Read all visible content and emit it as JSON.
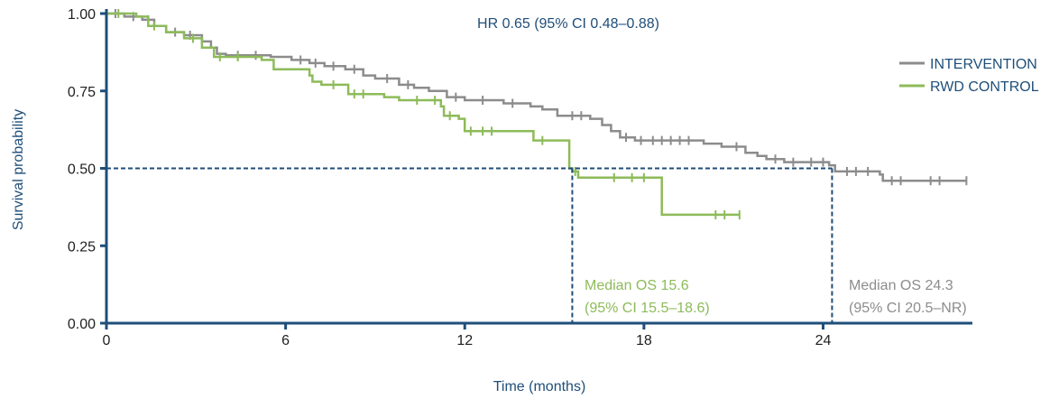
{
  "chart_data": {
    "type": "line",
    "subtype": "kaplan-meier",
    "hr_text": "HR 0.65 (95% CI 0.48–0.88)",
    "xlabel": "Time (months)",
    "ylabel": "Survival probability",
    "xlim": [
      0,
      29
    ],
    "ylim": [
      0,
      1
    ],
    "x_ticks": [
      0,
      6,
      12,
      18,
      24
    ],
    "y_ticks": [
      0.0,
      0.25,
      0.5,
      0.75,
      1.0
    ],
    "y_tick_labels": [
      "0.00",
      "0.25",
      "0.50",
      "0.75",
      "1.00"
    ],
    "legend_position": "top-right",
    "reference_y": 0.5,
    "series": [
      {
        "name": "INTERVENTION",
        "color": "#8c8c8c",
        "steps": [
          [
            0,
            1.0
          ],
          [
            0.6,
            0.99
          ],
          [
            1.2,
            0.98
          ],
          [
            1.6,
            0.96
          ],
          [
            2.0,
            0.94
          ],
          [
            2.6,
            0.93
          ],
          [
            3.2,
            0.91
          ],
          [
            3.5,
            0.89
          ],
          [
            3.7,
            0.87
          ],
          [
            4.0,
            0.865
          ],
          [
            5.5,
            0.86
          ],
          [
            6.2,
            0.85
          ],
          [
            6.8,
            0.84
          ],
          [
            7.3,
            0.83
          ],
          [
            8.0,
            0.82
          ],
          [
            8.6,
            0.8
          ],
          [
            9.0,
            0.79
          ],
          [
            9.8,
            0.77
          ],
          [
            10.3,
            0.76
          ],
          [
            10.8,
            0.75
          ],
          [
            11.4,
            0.73
          ],
          [
            12.0,
            0.72
          ],
          [
            13.3,
            0.71
          ],
          [
            14.2,
            0.7
          ],
          [
            14.6,
            0.69
          ],
          [
            15.1,
            0.67
          ],
          [
            16.2,
            0.66
          ],
          [
            16.6,
            0.64
          ],
          [
            16.9,
            0.62
          ],
          [
            17.2,
            0.6
          ],
          [
            17.7,
            0.59
          ],
          [
            20.0,
            0.58
          ],
          [
            20.6,
            0.57
          ],
          [
            21.4,
            0.55
          ],
          [
            21.8,
            0.54
          ],
          [
            22.1,
            0.53
          ],
          [
            22.7,
            0.52
          ],
          [
            24.2,
            0.51
          ],
          [
            24.4,
            0.49
          ],
          [
            25.9,
            0.48
          ],
          [
            26.0,
            0.46
          ],
          [
            28.8,
            0.46
          ]
        ],
        "censored": [
          [
            0.3,
            1.0
          ],
          [
            0.9,
            0.99
          ],
          [
            1.4,
            0.98
          ],
          [
            2.3,
            0.94
          ],
          [
            2.8,
            0.93
          ],
          [
            4.4,
            0.865
          ],
          [
            5.0,
            0.865
          ],
          [
            6.5,
            0.85
          ],
          [
            7.0,
            0.84
          ],
          [
            7.6,
            0.83
          ],
          [
            8.3,
            0.82
          ],
          [
            9.4,
            0.79
          ],
          [
            10.1,
            0.77
          ],
          [
            11.7,
            0.73
          ],
          [
            12.6,
            0.72
          ],
          [
            13.6,
            0.71
          ],
          [
            15.6,
            0.67
          ],
          [
            15.9,
            0.67
          ],
          [
            17.4,
            0.6
          ],
          [
            17.9,
            0.59
          ],
          [
            18.3,
            0.59
          ],
          [
            18.6,
            0.59
          ],
          [
            18.9,
            0.59
          ],
          [
            19.2,
            0.59
          ],
          [
            19.5,
            0.59
          ],
          [
            21.1,
            0.57
          ],
          [
            22.4,
            0.53
          ],
          [
            23.0,
            0.52
          ],
          [
            23.6,
            0.52
          ],
          [
            24.0,
            0.52
          ],
          [
            24.8,
            0.49
          ],
          [
            25.1,
            0.49
          ],
          [
            25.5,
            0.49
          ],
          [
            26.3,
            0.46
          ],
          [
            26.6,
            0.46
          ],
          [
            27.6,
            0.46
          ],
          [
            27.9,
            0.46
          ],
          [
            28.8,
            0.46
          ]
        ]
      },
      {
        "name": "RWD CONTROL",
        "color": "#8dbb59",
        "steps": [
          [
            0,
            1.0
          ],
          [
            1.0,
            0.99
          ],
          [
            1.4,
            0.96
          ],
          [
            2.0,
            0.94
          ],
          [
            2.6,
            0.92
          ],
          [
            3.2,
            0.89
          ],
          [
            3.6,
            0.86
          ],
          [
            5.2,
            0.85
          ],
          [
            5.6,
            0.82
          ],
          [
            6.8,
            0.8
          ],
          [
            6.9,
            0.78
          ],
          [
            7.2,
            0.77
          ],
          [
            8.1,
            0.74
          ],
          [
            9.3,
            0.73
          ],
          [
            9.8,
            0.72
          ],
          [
            11.2,
            0.7
          ],
          [
            11.3,
            0.67
          ],
          [
            11.8,
            0.66
          ],
          [
            12.0,
            0.62
          ],
          [
            14.3,
            0.59
          ],
          [
            15.5,
            0.5
          ],
          [
            15.6,
            0.49
          ],
          [
            15.8,
            0.47
          ],
          [
            18.6,
            0.35
          ],
          [
            21.2,
            0.35
          ]
        ],
        "censored": [
          [
            0.4,
            1.0
          ],
          [
            1.6,
            0.96
          ],
          [
            2.9,
            0.92
          ],
          [
            3.8,
            0.86
          ],
          [
            4.4,
            0.86
          ],
          [
            7.6,
            0.77
          ],
          [
            8.3,
            0.74
          ],
          [
            8.6,
            0.74
          ],
          [
            10.4,
            0.72
          ],
          [
            11.0,
            0.72
          ],
          [
            11.5,
            0.67
          ],
          [
            12.2,
            0.62
          ],
          [
            12.6,
            0.62
          ],
          [
            12.9,
            0.62
          ],
          [
            14.6,
            0.59
          ],
          [
            15.7,
            0.49
          ],
          [
            17.0,
            0.47
          ],
          [
            17.6,
            0.47
          ],
          [
            18.0,
            0.47
          ],
          [
            20.4,
            0.35
          ],
          [
            20.7,
            0.35
          ],
          [
            21.2,
            0.35
          ]
        ]
      }
    ],
    "medians": [
      {
        "series": "RWD CONTROL",
        "value": 15.6,
        "line1": "Median OS 15.6",
        "line2": "(95% CI 15.5–18.6)",
        "color": "#8dbb59"
      },
      {
        "series": "INTERVENTION",
        "value": 24.3,
        "line1": "Median OS 24.3",
        "line2": "(95% CI 20.5–NR)",
        "color": "#8c8c8c"
      }
    ],
    "axis_color": "#1f4e79",
    "reference_color": "#1f4e79"
  }
}
